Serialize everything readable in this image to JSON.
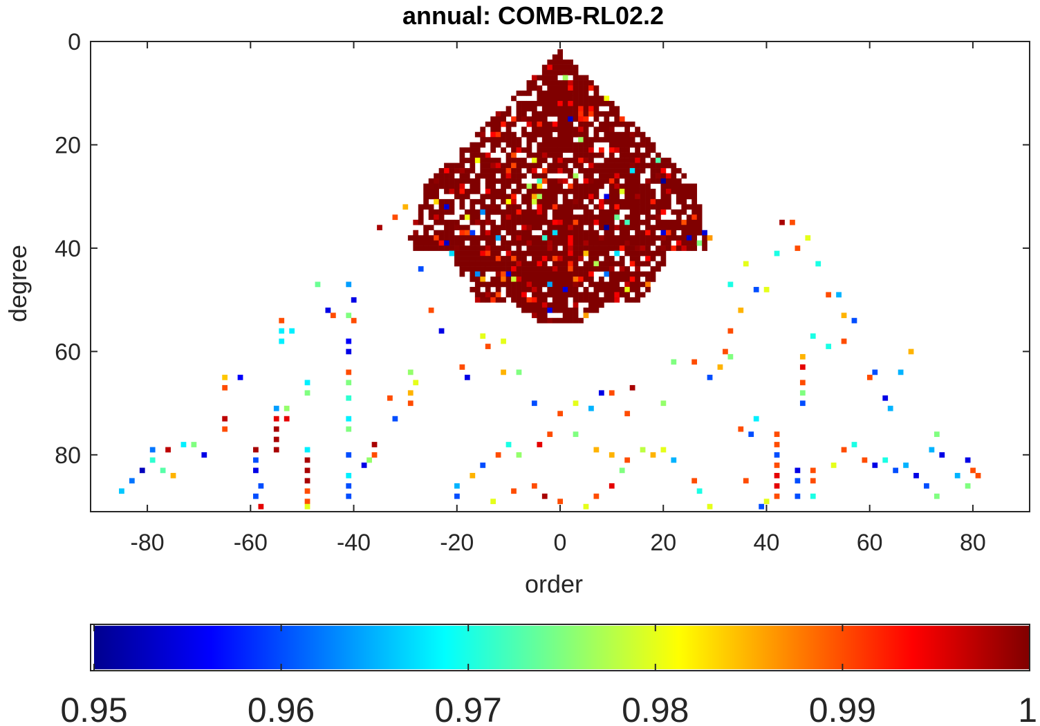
{
  "chart_data": {
    "type": "heatmap",
    "title": "annual: COMB-RL02.2",
    "xlabel": "order",
    "ylabel": "degree",
    "xlim": [
      -91,
      91
    ],
    "ylim": [
      91,
      0
    ],
    "x_ticks": [
      -80,
      -60,
      -40,
      -20,
      0,
      20,
      40,
      60,
      80
    ],
    "x_tick_labels": [
      "-80",
      "-60",
      "-40",
      "-20",
      "0",
      "20",
      "40",
      "60",
      "80"
    ],
    "y_ticks": [
      0,
      20,
      40,
      60,
      80
    ],
    "y_tick_labels": [
      "0",
      "20",
      "40",
      "60",
      "80"
    ],
    "colormap": "jet",
    "colorbar": {
      "orientation": "horizontal",
      "range": [
        0.95,
        1
      ],
      "ticks": [
        0.95,
        0.96,
        0.97,
        0.98,
        0.99,
        1
      ],
      "tick_labels": [
        "0.95",
        "0.96",
        "0.97",
        "0.98",
        "0.99",
        "1"
      ]
    },
    "description_of_values": "Per-cell values of the (degree, order) grid; cells below 0.95 are blank. Dense region near 1 for low degrees forming a triangle around order 0; sparse scattered cells at higher degrees.",
    "core_region": {
      "max_degree_dense": 50,
      "value": 1.0
    },
    "scattered_cells": [
      [
        -85,
        87,
        0.966
      ],
      [
        -83,
        85,
        0.962
      ],
      [
        -81,
        83,
        0.953
      ],
      [
        -79,
        79,
        0.962
      ],
      [
        -79,
        81,
        0.971
      ],
      [
        -77,
        83,
        0.973
      ],
      [
        -75,
        84,
        0.985
      ],
      [
        -76,
        79,
        0.997
      ],
      [
        -73,
        78,
        0.968
      ],
      [
        -71,
        78,
        0.975
      ],
      [
        -69,
        80,
        0.955
      ],
      [
        -65,
        65,
        0.984
      ],
      [
        -65,
        67,
        0.99
      ],
      [
        -62,
        65,
        0.956
      ],
      [
        -65,
        73,
        0.997
      ],
      [
        -65,
        75,
        0.99
      ],
      [
        -59,
        79,
        0.998
      ],
      [
        -59,
        81,
        0.96
      ],
      [
        -59,
        83,
        0.955
      ],
      [
        -58,
        86,
        0.96
      ],
      [
        -59,
        88,
        0.96
      ],
      [
        -58,
        90,
        0.995
      ],
      [
        -55,
        71,
        0.964
      ],
      [
        -55,
        73,
        0.995
      ],
      [
        -55,
        75,
        0.998
      ],
      [
        -55,
        77,
        0.998
      ],
      [
        -55,
        79,
        0.998
      ],
      [
        -54,
        56,
        0.968
      ],
      [
        -54,
        58,
        0.968
      ],
      [
        -54,
        54,
        0.99
      ],
      [
        -53,
        73,
        0.995
      ],
      [
        -53,
        71,
        0.976
      ],
      [
        -52,
        56,
        0.968
      ],
      [
        -49,
        79,
        0.968
      ],
      [
        -49,
        81,
        0.998
      ],
      [
        -49,
        83,
        0.998
      ],
      [
        -49,
        85,
        0.998
      ],
      [
        -49,
        87,
        0.99
      ],
      [
        -49,
        89,
        0.99
      ],
      [
        -49,
        90,
        0.98
      ],
      [
        -49,
        68,
        0.975
      ],
      [
        -49,
        66,
        0.968
      ],
      [
        -47,
        47,
        0.974
      ],
      [
        -45,
        52,
        0.955
      ],
      [
        -44,
        53,
        0.99
      ],
      [
        -41,
        47,
        0.964
      ],
      [
        -41,
        53,
        0.975
      ],
      [
        -40,
        50,
        0.955
      ],
      [
        -40,
        54,
        0.99
      ],
      [
        -41,
        58,
        0.956
      ],
      [
        -41,
        60,
        0.955
      ],
      [
        -41,
        64,
        0.99
      ],
      [
        -41,
        66,
        0.975
      ],
      [
        -41,
        69,
        0.971
      ],
      [
        -41,
        73,
        0.968
      ],
      [
        -41,
        75,
        0.975
      ],
      [
        -41,
        80,
        0.96
      ],
      [
        -41,
        84,
        0.968
      ],
      [
        -41,
        86,
        0.96
      ],
      [
        -41,
        88,
        0.96
      ],
      [
        -38,
        82,
        0.955
      ],
      [
        -37,
        81,
        0.976
      ],
      [
        -36,
        80,
        0.99
      ],
      [
        -36,
        78,
        0.998
      ],
      [
        -33,
        69,
        0.99
      ],
      [
        -32,
        73,
        0.96
      ],
      [
        -35,
        36,
        0.998
      ],
      [
        -32,
        34,
        0.99
      ],
      [
        -30,
        32,
        0.985
      ],
      [
        -29,
        64,
        0.976
      ],
      [
        -28,
        66,
        0.98
      ],
      [
        -29,
        68,
        0.985
      ],
      [
        -29,
        70,
        0.99
      ],
      [
        -27,
        44,
        0.96
      ],
      [
        -25,
        52,
        0.99
      ],
      [
        -23,
        56,
        0.955
      ],
      [
        -19,
        63,
        0.99
      ],
      [
        -18,
        65,
        0.955
      ],
      [
        -15,
        57,
        0.98
      ],
      [
        -14,
        59,
        0.99
      ],
      [
        -11,
        58,
        0.98
      ],
      [
        -11,
        64,
        0.985
      ],
      [
        -8,
        64,
        0.975
      ],
      [
        -5,
        70,
        0.96
      ],
      [
        3,
        70,
        0.98
      ],
      [
        8,
        68,
        0.955
      ],
      [
        10,
        68,
        0.99
      ],
      [
        14,
        67,
        0.998
      ],
      [
        20,
        70,
        0.976
      ],
      [
        13,
        72,
        0.99
      ],
      [
        6,
        71,
        0.965
      ],
      [
        22,
        62,
        0.975
      ],
      [
        26,
        62,
        0.99
      ],
      [
        29,
        65,
        0.96
      ],
      [
        31,
        63,
        0.985
      ],
      [
        33,
        56,
        0.99
      ],
      [
        35,
        52,
        0.985
      ],
      [
        33,
        47,
        0.97
      ],
      [
        36,
        43,
        0.98
      ],
      [
        38,
        48,
        0.96
      ],
      [
        40,
        48,
        0.98
      ],
      [
        42,
        41,
        0.97
      ],
      [
        43,
        35,
        0.998
      ],
      [
        45,
        35,
        0.99
      ],
      [
        46,
        40,
        0.99
      ],
      [
        48,
        38,
        0.98
      ],
      [
        50,
        43,
        0.97
      ],
      [
        52,
        49,
        0.99
      ],
      [
        54,
        49,
        0.965
      ],
      [
        55,
        53,
        0.985
      ],
      [
        57,
        54,
        0.96
      ],
      [
        49,
        57,
        0.97
      ],
      [
        52,
        59,
        0.97
      ],
      [
        55,
        58,
        0.99
      ],
      [
        60,
        65,
        0.99
      ],
      [
        61,
        64,
        0.96
      ],
      [
        63,
        69,
        0.955
      ],
      [
        64,
        71,
        0.965
      ],
      [
        66,
        64,
        0.965
      ],
      [
        68,
        60,
        0.985
      ],
      [
        73,
        76,
        0.975
      ],
      [
        72,
        79,
        0.965
      ],
      [
        74,
        80,
        0.955
      ],
      [
        77,
        84,
        0.965
      ],
      [
        79,
        81,
        0.955
      ],
      [
        81,
        84,
        0.99
      ],
      [
        80,
        83,
        0.99
      ],
      [
        79,
        86,
        0.975
      ],
      [
        73,
        88,
        0.975
      ],
      [
        71,
        86,
        0.96
      ],
      [
        69,
        84,
        0.955
      ],
      [
        67,
        82,
        0.965
      ],
      [
        65,
        83,
        0.96
      ],
      [
        63,
        81,
        0.97
      ],
      [
        61,
        82,
        0.955
      ],
      [
        59,
        81,
        0.99
      ],
      [
        57,
        78,
        0.97
      ],
      [
        55,
        79,
        0.99
      ],
      [
        53,
        82,
        0.98
      ],
      [
        49,
        83,
        0.99
      ],
      [
        49,
        85,
        0.99
      ],
      [
        49,
        88,
        0.97
      ],
      [
        46,
        83,
        0.955
      ],
      [
        46,
        85,
        0.96
      ],
      [
        46,
        88,
        0.96
      ],
      [
        47,
        61,
        0.985
      ],
      [
        47,
        63,
        0.995
      ],
      [
        47,
        66,
        0.99
      ],
      [
        47,
        68,
        0.975
      ],
      [
        47,
        70,
        0.96
      ],
      [
        42,
        76,
        0.99
      ],
      [
        42,
        78,
        0.99
      ],
      [
        42,
        80,
        0.96
      ],
      [
        42,
        82,
        0.99
      ],
      [
        42,
        84,
        0.995
      ],
      [
        42,
        86,
        0.995
      ],
      [
        42,
        88,
        0.99
      ],
      [
        40,
        89,
        0.98
      ],
      [
        39,
        90,
        0.96
      ],
      [
        36,
        85,
        0.99
      ],
      [
        38,
        73,
        0.968
      ],
      [
        37,
        76,
        0.96
      ],
      [
        35,
        75,
        0.99
      ],
      [
        32,
        60,
        0.99
      ],
      [
        33,
        61,
        0.975
      ],
      [
        29,
        90,
        0.98
      ],
      [
        27,
        87,
        0.97
      ],
      [
        26,
        85,
        0.99
      ],
      [
        22,
        81,
        0.965
      ],
      [
        20,
        79,
        0.98
      ],
      [
        18,
        80,
        0.985
      ],
      [
        16,
        79,
        0.978
      ],
      [
        13,
        81,
        0.99
      ],
      [
        12,
        83,
        0.975
      ],
      [
        10,
        86,
        0.995
      ],
      [
        7,
        88,
        0.99
      ],
      [
        5,
        90,
        0.98
      ],
      [
        0,
        89,
        0.99
      ],
      [
        -3,
        88,
        0.998
      ],
      [
        -5,
        86,
        0.99
      ],
      [
        -9,
        87,
        0.99
      ],
      [
        -13,
        89,
        0.98
      ],
      [
        -20,
        88,
        0.96
      ],
      [
        -20,
        86,
        0.965
      ],
      [
        -17,
        84,
        0.985
      ],
      [
        -15,
        82,
        0.96
      ],
      [
        -12,
        80,
        0.99
      ],
      [
        -10,
        78,
        0.97
      ],
      [
        -8,
        80,
        0.976
      ],
      [
        -4,
        78,
        0.995
      ],
      [
        -2,
        76,
        0.99
      ],
      [
        0,
        72,
        0.99
      ],
      [
        3,
        76,
        0.975
      ],
      [
        7,
        79,
        0.985
      ],
      [
        10,
        80,
        0.985
      ]
    ]
  }
}
